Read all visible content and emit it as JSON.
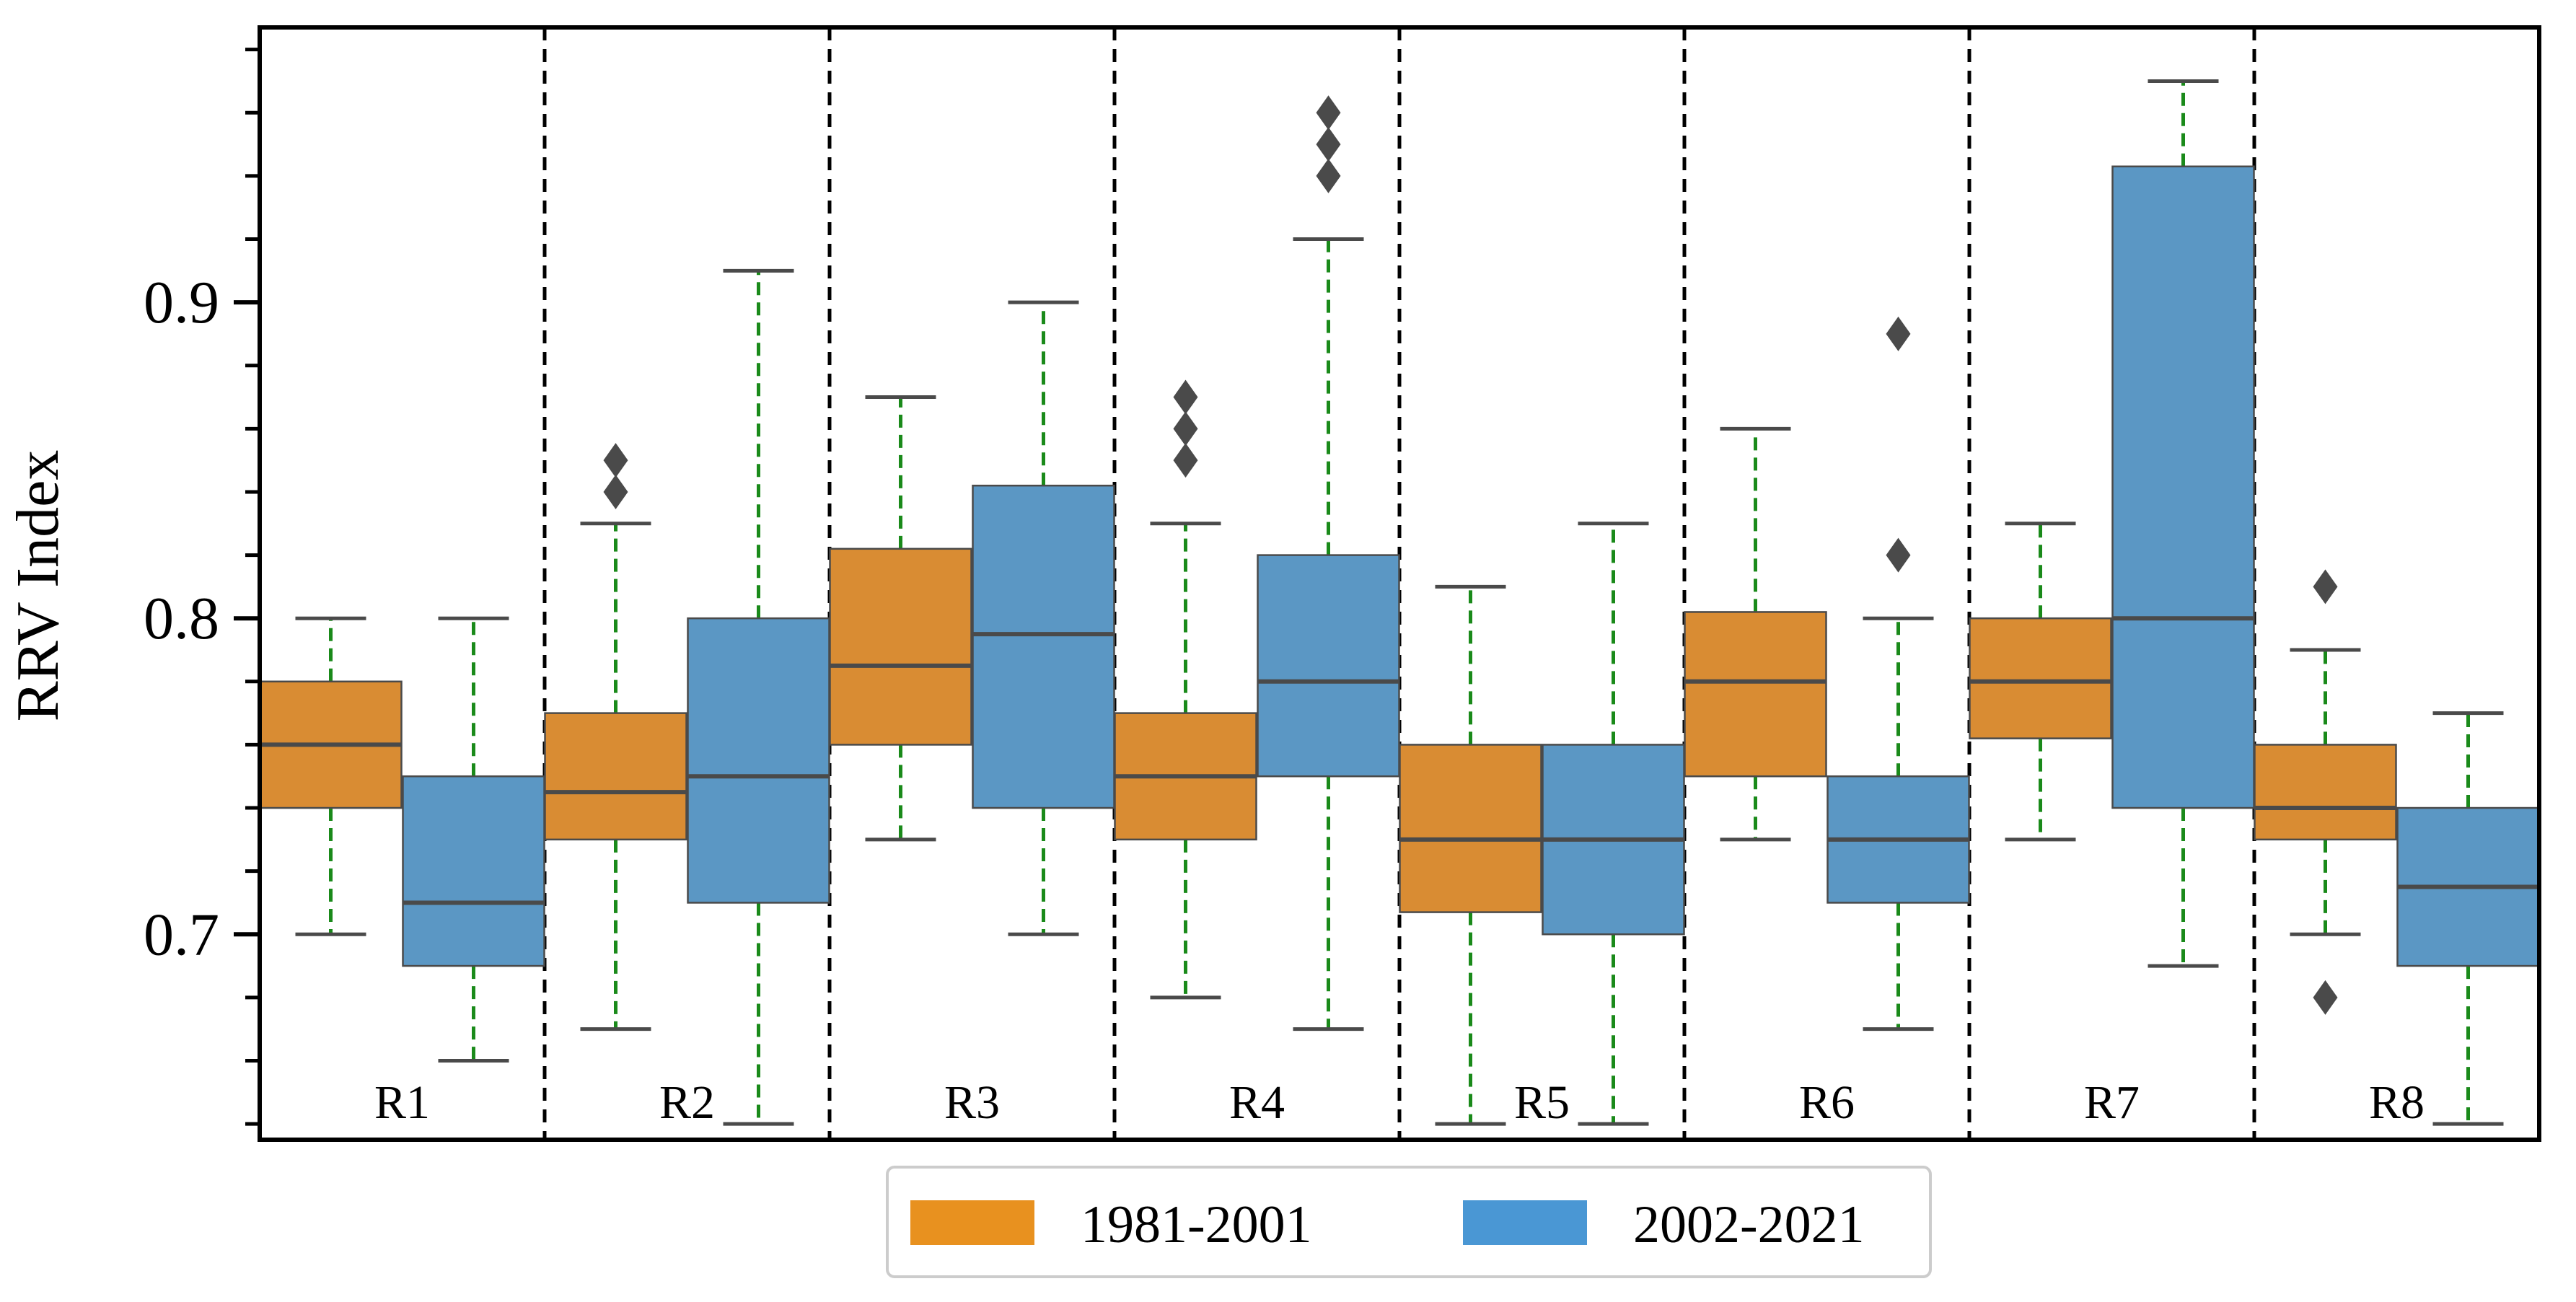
{
  "chart_data": {
    "type": "box",
    "title": "",
    "xlabel": "",
    "ylabel": "RRV Index",
    "ylim": [
      0.635,
      0.987
    ],
    "yticks_major": [
      0.7,
      0.8,
      0.9
    ],
    "ytick_labels": [
      "0.7",
      "0.8",
      "0.9"
    ],
    "yticks_minor_step": 0.02,
    "grid": false,
    "categories": [
      "R1",
      "R2",
      "R3",
      "R4",
      "R5",
      "R6",
      "R7",
      "R8"
    ],
    "series": [
      {
        "name": "1981-2001",
        "color": "#d98c33",
        "boxes": [
          {
            "region": "R1",
            "whisker_low": 0.7,
            "q1": 0.74,
            "median": 0.76,
            "q3": 0.78,
            "whisker_high": 0.8,
            "outliers": []
          },
          {
            "region": "R2",
            "whisker_low": 0.67,
            "q1": 0.73,
            "median": 0.745,
            "q3": 0.77,
            "whisker_high": 0.83,
            "outliers": [
              0.84,
              0.85
            ]
          },
          {
            "region": "R3",
            "whisker_low": 0.73,
            "q1": 0.76,
            "median": 0.785,
            "q3": 0.822,
            "whisker_high": 0.87,
            "outliers": []
          },
          {
            "region": "R4",
            "whisker_low": 0.68,
            "q1": 0.73,
            "median": 0.75,
            "q3": 0.77,
            "whisker_high": 0.83,
            "outliers": [
              0.85,
              0.86,
              0.87
            ]
          },
          {
            "region": "R5",
            "whisker_low": 0.64,
            "q1": 0.707,
            "median": 0.73,
            "q3": 0.76,
            "whisker_high": 0.81,
            "outliers": []
          },
          {
            "region": "R6",
            "whisker_low": 0.73,
            "q1": 0.75,
            "median": 0.78,
            "q3": 0.802,
            "whisker_high": 0.86,
            "outliers": []
          },
          {
            "region": "R7",
            "whisker_low": 0.73,
            "q1": 0.762,
            "median": 0.78,
            "q3": 0.8,
            "whisker_high": 0.83,
            "outliers": []
          },
          {
            "region": "R8",
            "whisker_low": 0.7,
            "q1": 0.73,
            "median": 0.74,
            "q3": 0.76,
            "whisker_high": 0.79,
            "outliers": [
              0.68,
              0.81
            ]
          }
        ]
      },
      {
        "name": "2002-2021",
        "color": "#5b97c4",
        "boxes": [
          {
            "region": "R1",
            "whisker_low": 0.66,
            "q1": 0.69,
            "median": 0.71,
            "q3": 0.75,
            "whisker_high": 0.8,
            "outliers": []
          },
          {
            "region": "R2",
            "whisker_low": 0.64,
            "q1": 0.71,
            "median": 0.75,
            "q3": 0.8,
            "whisker_high": 0.91,
            "outliers": []
          },
          {
            "region": "R3",
            "whisker_low": 0.7,
            "q1": 0.74,
            "median": 0.795,
            "q3": 0.842,
            "whisker_high": 0.9,
            "outliers": []
          },
          {
            "region": "R4",
            "whisker_low": 0.67,
            "q1": 0.75,
            "median": 0.78,
            "q3": 0.82,
            "whisker_high": 0.92,
            "outliers": [
              0.94,
              0.95,
              0.96
            ]
          },
          {
            "region": "R5",
            "whisker_low": 0.64,
            "q1": 0.7,
            "median": 0.73,
            "q3": 0.76,
            "whisker_high": 0.83,
            "outliers": []
          },
          {
            "region": "R6",
            "whisker_low": 0.67,
            "q1": 0.71,
            "median": 0.73,
            "q3": 0.75,
            "whisker_high": 0.8,
            "outliers": [
              0.82,
              0.89
            ]
          },
          {
            "region": "R7",
            "whisker_low": 0.69,
            "q1": 0.74,
            "median": 0.8,
            "q3": 0.943,
            "whisker_high": 0.97,
            "outliers": []
          },
          {
            "region": "R8",
            "whisker_low": 0.64,
            "q1": 0.69,
            "median": 0.715,
            "q3": 0.74,
            "whisker_high": 0.77,
            "outliers": []
          }
        ]
      }
    ],
    "whisker_color": "#1a8a1a",
    "median_color": "#4a4a4a",
    "outlier_color": "#4a4a4a",
    "region_separator": "dashed",
    "legend": {
      "position": "bottom-center",
      "entries": [
        {
          "label": "1981-2001",
          "color": "#e8911f"
        },
        {
          "label": "2002-2021",
          "color": "#4a97d4"
        }
      ]
    }
  }
}
